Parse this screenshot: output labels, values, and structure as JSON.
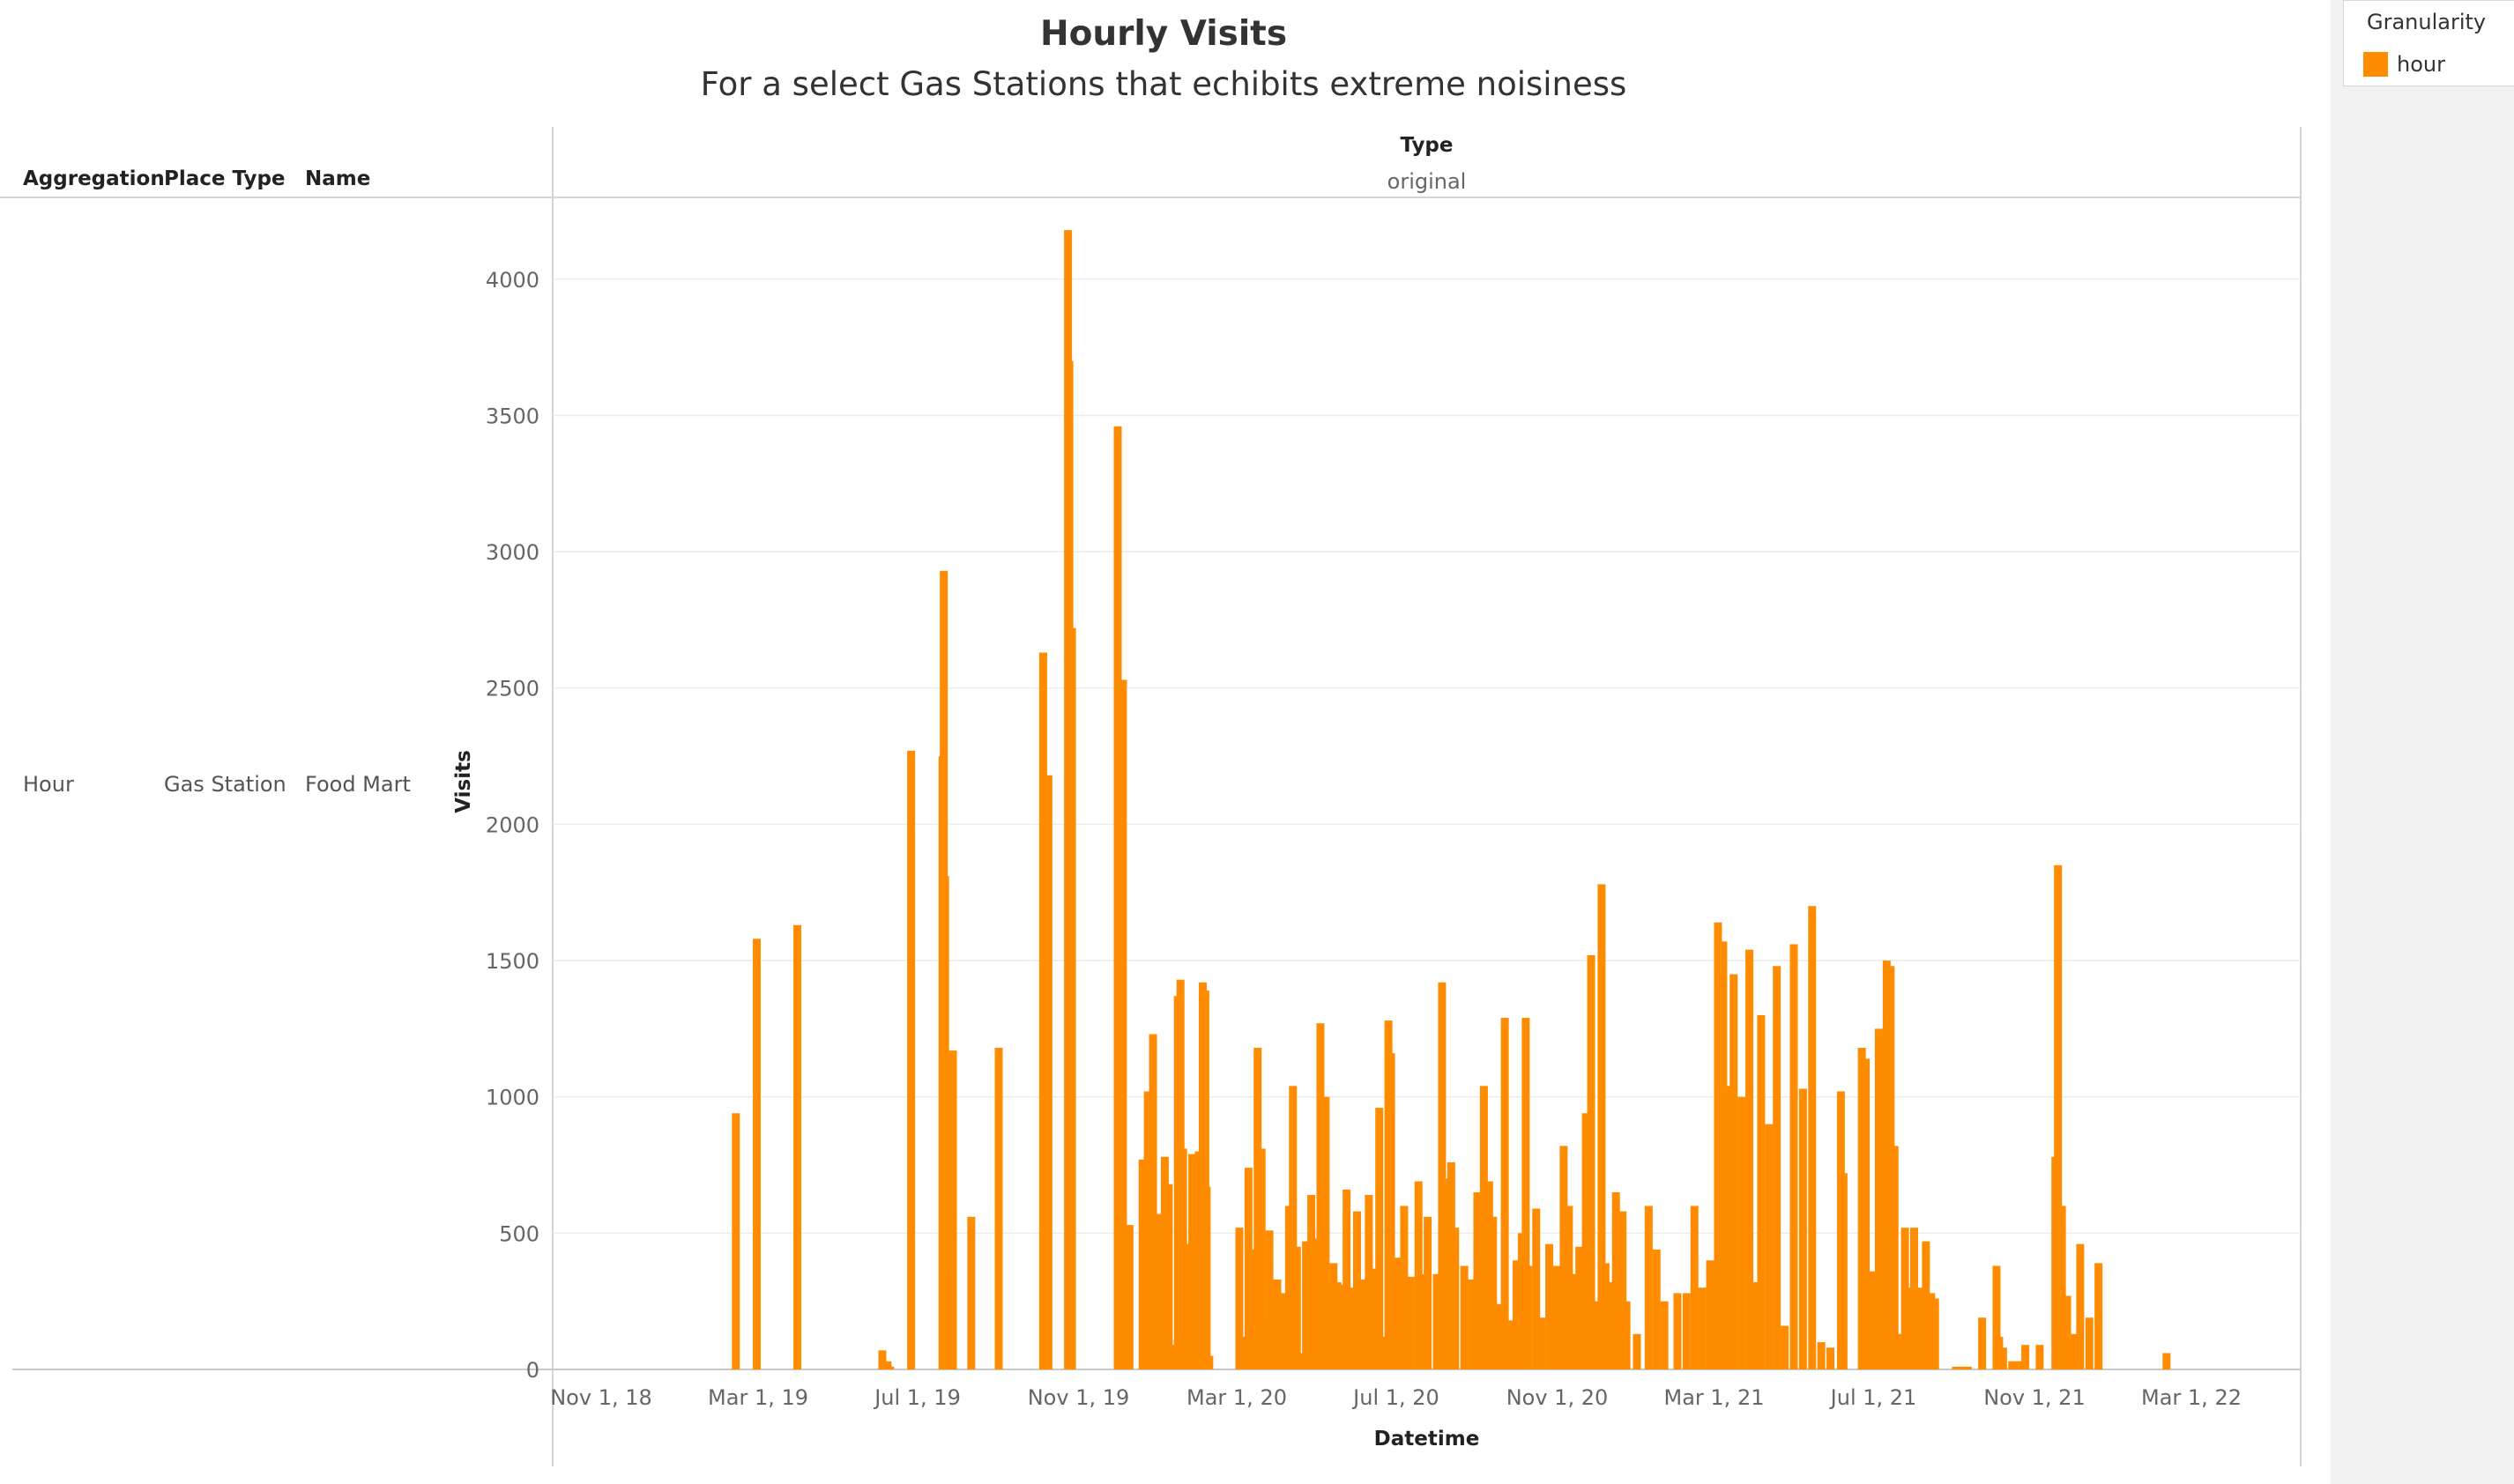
{
  "header": {
    "title": "Hourly Visits",
    "subtitle": "For a select Gas Stations that echibits extreme noisiness"
  },
  "columns": {
    "aggregation": {
      "header": "Aggregation",
      "value": "Hour"
    },
    "place_type": {
      "header": "Place Type",
      "value": "Gas Station"
    },
    "name": {
      "header": "Name",
      "value": "Food Mart"
    }
  },
  "pane": {
    "header": "Type",
    "value": "original"
  },
  "legend": {
    "title": "Granularity",
    "items": [
      {
        "label": "hour",
        "color": "#ff8c00"
      }
    ]
  },
  "chart_data": {
    "type": "bar",
    "title": "Hourly Visits",
    "subtitle": "For a select Gas Stations that echibits extreme noisiness",
    "xlabel": "Datetime",
    "ylabel": "Visits",
    "x_ticks": [
      "Nov 1, 18",
      "Mar 1, 19",
      "Jul 1, 19",
      "Nov 1, 19",
      "Mar 1, 20",
      "Jul 1, 20",
      "Nov 1, 20",
      "Mar 1, 21",
      "Jul 1, 21",
      "Nov 1, 21",
      "Mar 1, 22"
    ],
    "x_tick_dates": [
      "2018-11-01",
      "2019-03-01",
      "2019-07-01",
      "2019-11-01",
      "2020-03-01",
      "2020-07-01",
      "2020-11-01",
      "2021-03-01",
      "2021-07-01",
      "2021-11-01",
      "2022-03-01"
    ],
    "y_ticks": [
      0,
      500,
      1000,
      1500,
      2000,
      2500,
      3000,
      3500,
      4000
    ],
    "ylim": [
      0,
      4300
    ],
    "grid": true,
    "color": "#ff8c00",
    "series": [
      {
        "name": "hour",
        "points": [
          [
            "2019-02-12",
            940
          ],
          [
            "2019-02-28",
            1580
          ],
          [
            "2019-03-31",
            1630
          ],
          [
            "2019-06-04",
            70
          ],
          [
            "2019-06-08",
            30
          ],
          [
            "2019-06-10",
            10
          ],
          [
            "2019-06-26",
            2270
          ],
          [
            "2019-07-20",
            2250
          ],
          [
            "2019-07-21",
            2930
          ],
          [
            "2019-07-22",
            1810
          ],
          [
            "2019-07-24",
            350
          ],
          [
            "2019-07-28",
            1170
          ],
          [
            "2019-08-11",
            560
          ],
          [
            "2019-09-01",
            1180
          ],
          [
            "2019-10-05",
            2630
          ],
          [
            "2019-10-08",
            1200
          ],
          [
            "2019-10-09",
            2180
          ],
          [
            "2019-10-24",
            4180
          ],
          [
            "2019-10-25",
            3700
          ],
          [
            "2019-10-27",
            2720
          ],
          [
            "2019-12-01",
            3460
          ],
          [
            "2019-12-03",
            1280
          ],
          [
            "2019-12-05",
            2530
          ],
          [
            "2019-12-08",
            440
          ],
          [
            "2019-12-10",
            530
          ],
          [
            "2019-12-20",
            770
          ],
          [
            "2019-12-24",
            1020
          ],
          [
            "2019-12-28",
            1230
          ],
          [
            "2019-12-31",
            400
          ],
          [
            "2020-01-03",
            570
          ],
          [
            "2020-01-06",
            780
          ],
          [
            "2020-01-09",
            680
          ],
          [
            "2020-01-12",
            90
          ],
          [
            "2020-01-16",
            1370
          ],
          [
            "2020-01-18",
            1430
          ],
          [
            "2020-01-20",
            810
          ],
          [
            "2020-01-24",
            460
          ],
          [
            "2020-01-27",
            790
          ],
          [
            "2020-01-30",
            470
          ],
          [
            "2020-02-01",
            800
          ],
          [
            "2020-02-04",
            1420
          ],
          [
            "2020-02-06",
            1390
          ],
          [
            "2020-02-07",
            670
          ],
          [
            "2020-02-09",
            50
          ],
          [
            "2020-03-03",
            520
          ],
          [
            "2020-03-06",
            120
          ],
          [
            "2020-03-10",
            740
          ],
          [
            "2020-03-13",
            440
          ],
          [
            "2020-03-17",
            1180
          ],
          [
            "2020-03-20",
            810
          ],
          [
            "2020-03-22",
            190
          ],
          [
            "2020-03-26",
            510
          ],
          [
            "2020-04-01",
            330
          ],
          [
            "2020-04-05",
            280
          ],
          [
            "2020-04-10",
            600
          ],
          [
            "2020-04-13",
            1040
          ],
          [
            "2020-04-16",
            450
          ],
          [
            "2020-04-19",
            60
          ],
          [
            "2020-04-23",
            470
          ],
          [
            "2020-04-27",
            640
          ],
          [
            "2020-05-01",
            480
          ],
          [
            "2020-05-04",
            1270
          ],
          [
            "2020-05-08",
            1000
          ],
          [
            "2020-05-10",
            320
          ],
          [
            "2020-05-14",
            390
          ],
          [
            "2020-05-17",
            320
          ],
          [
            "2020-05-20",
            310
          ],
          [
            "2020-05-24",
            660
          ],
          [
            "2020-05-28",
            300
          ],
          [
            "2020-06-01",
            580
          ],
          [
            "2020-06-05",
            330
          ],
          [
            "2020-06-10",
            640
          ],
          [
            "2020-06-14",
            370
          ],
          [
            "2020-06-18",
            960
          ],
          [
            "2020-06-22",
            120
          ],
          [
            "2020-06-25",
            1280
          ],
          [
            "2020-06-27",
            1160
          ],
          [
            "2020-07-03",
            410
          ],
          [
            "2020-07-07",
            600
          ],
          [
            "2020-07-12",
            340
          ],
          [
            "2020-07-18",
            690
          ],
          [
            "2020-07-22",
            350
          ],
          [
            "2020-07-25",
            560
          ],
          [
            "2020-08-01",
            350
          ],
          [
            "2020-08-05",
            1420
          ],
          [
            "2020-08-09",
            700
          ],
          [
            "2020-08-12",
            760
          ],
          [
            "2020-08-15",
            520
          ],
          [
            "2020-08-22",
            380
          ],
          [
            "2020-08-28",
            330
          ],
          [
            "2020-09-01",
            650
          ],
          [
            "2020-09-06",
            1040
          ],
          [
            "2020-09-10",
            690
          ],
          [
            "2020-09-13",
            560
          ],
          [
            "2020-09-17",
            240
          ],
          [
            "2020-09-22",
            1290
          ],
          [
            "2020-09-26",
            180
          ],
          [
            "2020-10-01",
            400
          ],
          [
            "2020-10-05",
            500
          ],
          [
            "2020-10-08",
            1290
          ],
          [
            "2020-10-10",
            380
          ],
          [
            "2020-10-16",
            590
          ],
          [
            "2020-10-20",
            190
          ],
          [
            "2020-10-26",
            460
          ],
          [
            "2020-11-01",
            380
          ],
          [
            "2020-11-06",
            820
          ],
          [
            "2020-11-10",
            600
          ],
          [
            "2020-11-14",
            350
          ],
          [
            "2020-11-18",
            450
          ],
          [
            "2020-11-23",
            940
          ],
          [
            "2020-11-27",
            1520
          ],
          [
            "2020-12-01",
            250
          ],
          [
            "2020-12-05",
            1780
          ],
          [
            "2020-12-08",
            390
          ],
          [
            "2020-12-12",
            320
          ],
          [
            "2020-12-16",
            650
          ],
          [
            "2020-12-21",
            580
          ],
          [
            "2020-12-24",
            250
          ],
          [
            "2021-01-01",
            130
          ],
          [
            "2021-01-10",
            600
          ],
          [
            "2021-01-16",
            440
          ],
          [
            "2021-01-22",
            250
          ],
          [
            "2021-02-01",
            280
          ],
          [
            "2021-02-08",
            280
          ],
          [
            "2021-02-14",
            600
          ],
          [
            "2021-02-20",
            300
          ],
          [
            "2021-02-26",
            400
          ],
          [
            "2021-03-04",
            1640
          ],
          [
            "2021-03-08",
            1570
          ],
          [
            "2021-03-12",
            1040
          ],
          [
            "2021-03-16",
            1450
          ],
          [
            "2021-03-22",
            1000
          ],
          [
            "2021-03-28",
            1540
          ],
          [
            "2021-04-02",
            320
          ],
          [
            "2021-04-06",
            1300
          ],
          [
            "2021-04-12",
            900
          ],
          [
            "2021-04-18",
            1480
          ],
          [
            "2021-04-24",
            160
          ],
          [
            "2021-05-01",
            1560
          ],
          [
            "2021-05-08",
            1030
          ],
          [
            "2021-05-15",
            1700
          ],
          [
            "2021-05-22",
            100
          ],
          [
            "2021-05-29",
            80
          ],
          [
            "2021-06-06",
            1020
          ],
          [
            "2021-06-08",
            720
          ],
          [
            "2021-06-22",
            1180
          ],
          [
            "2021-06-25",
            1140
          ],
          [
            "2021-07-01",
            360
          ],
          [
            "2021-07-05",
            1250
          ],
          [
            "2021-07-08",
            1230
          ],
          [
            "2021-07-11",
            1500
          ],
          [
            "2021-07-14",
            1480
          ],
          [
            "2021-07-17",
            820
          ],
          [
            "2021-07-20",
            130
          ],
          [
            "2021-07-25",
            520
          ],
          [
            "2021-07-29",
            300
          ],
          [
            "2021-08-01",
            520
          ],
          [
            "2021-08-05",
            300
          ],
          [
            "2021-08-10",
            470
          ],
          [
            "2021-08-14",
            280
          ],
          [
            "2021-08-17",
            260
          ],
          [
            "2021-09-02",
            10
          ],
          [
            "2021-09-07",
            10
          ],
          [
            "2021-09-11",
            10
          ],
          [
            "2021-09-22",
            190
          ],
          [
            "2021-10-03",
            380
          ],
          [
            "2021-10-05",
            120
          ],
          [
            "2021-10-08",
            80
          ],
          [
            "2021-10-15",
            30
          ],
          [
            "2021-10-18",
            30
          ],
          [
            "2021-10-22",
            30
          ],
          [
            "2021-10-25",
            90
          ],
          [
            "2021-11-05",
            90
          ],
          [
            "2021-11-17",
            780
          ],
          [
            "2021-11-19",
            1850
          ],
          [
            "2021-11-22",
            600
          ],
          [
            "2021-11-26",
            270
          ],
          [
            "2021-11-28",
            40
          ],
          [
            "2021-12-02",
            130
          ],
          [
            "2021-12-06",
            460
          ],
          [
            "2021-12-13",
            190
          ],
          [
            "2021-12-20",
            390
          ],
          [
            "2022-02-10",
            60
          ]
        ]
      }
    ]
  }
}
